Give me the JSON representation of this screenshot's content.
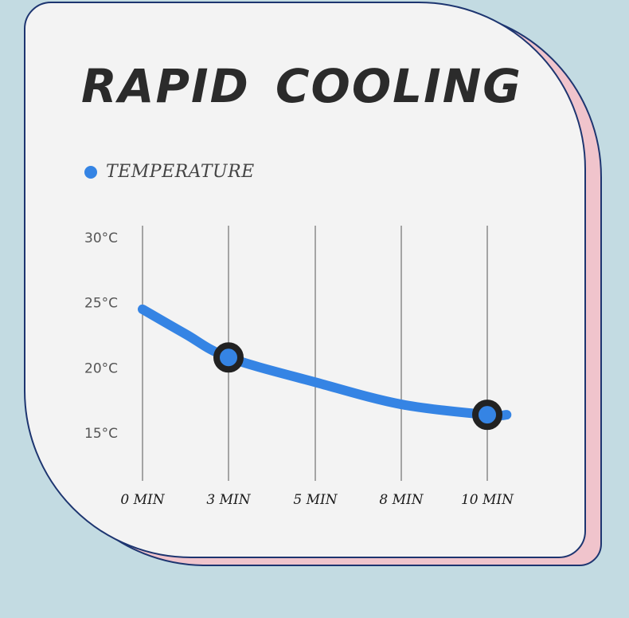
{
  "title": "RAPID COOLING",
  "colors": {
    "background": "#c3dbe2",
    "card": "#f3f3f3",
    "card_shadow": "#f0c4cc",
    "border": "#1d3570",
    "series": "#3584e4",
    "marker_ring": "#222222"
  },
  "chart_data": {
    "type": "line",
    "x_positions": [
      0,
      3,
      5,
      8,
      10
    ],
    "x_tick_labels": [
      "0 MIN",
      "3 MIN",
      "5 MIN",
      "8 MIN",
      "10 MIN"
    ],
    "y_ticks": [
      30,
      25,
      20,
      15
    ],
    "y_tick_labels": [
      "30°C",
      "25°C",
      "20°C",
      "15°C"
    ],
    "ylim": [
      12,
      30
    ],
    "grid": "vertical",
    "legend_position": "top-left",
    "series": [
      {
        "name": "TEMPERATURE",
        "color": "#3584e4",
        "points": [
          [
            0,
            24.5
          ],
          [
            1.5,
            22.6
          ],
          [
            3,
            20.8
          ],
          [
            5,
            18.9
          ],
          [
            8,
            17.2
          ],
          [
            10,
            16.4
          ],
          [
            10.45,
            16.4
          ]
        ],
        "highlighted": [
          [
            3,
            20.8
          ],
          [
            10,
            16.4
          ]
        ]
      }
    ]
  }
}
